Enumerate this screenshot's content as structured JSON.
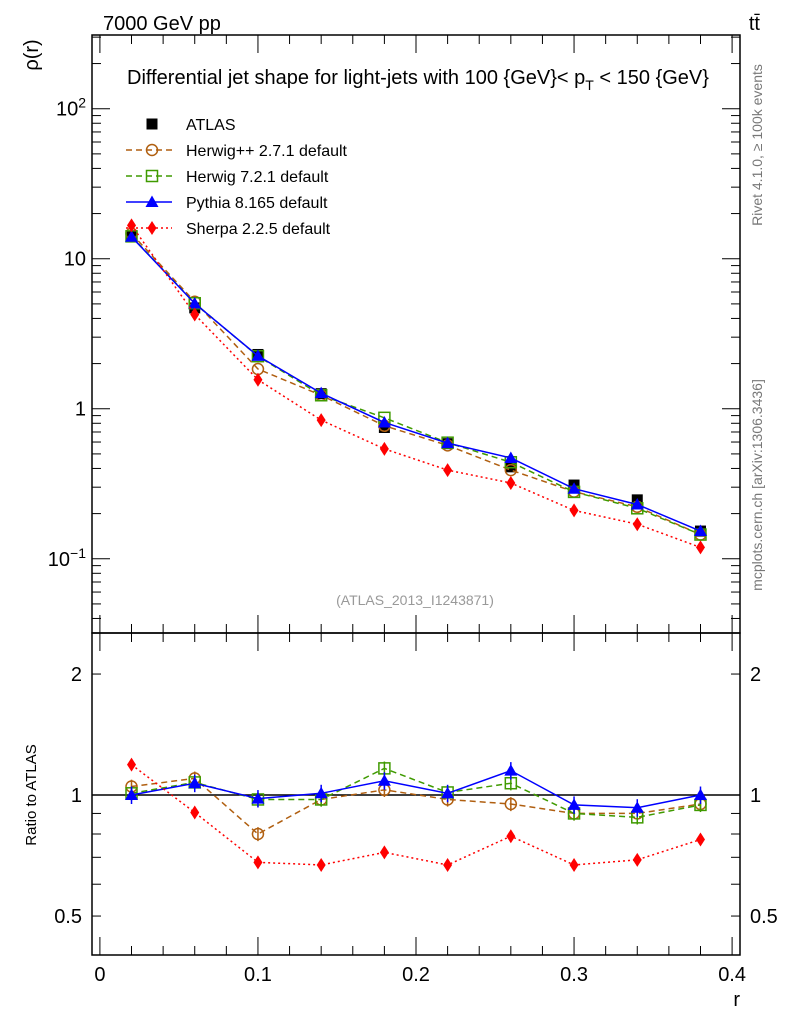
{
  "header": {
    "energy_label": "7000 GeV pp",
    "process_label": "tt̄"
  },
  "side": {
    "rivet_label": "Rivet 4.1.0, ≥ 100k events",
    "mcplots_label": "mcplots.cern.ch [arXiv:1306.3436]"
  },
  "watermark": "(ATLAS_2013_I1243871)",
  "chart_data": [
    {
      "type": "line",
      "title": "Differential jet shape for light-jets with 100 {GeV}< p",
      "title_sub": "T",
      "title_end": " < 150 {GeV}",
      "ylabel": "ρ(r)",
      "yscale": "log",
      "ylim": [
        0.032,
        310
      ],
      "xlim": [
        -0.005,
        0.405
      ],
      "ytick_labels": [
        {
          "v": 0.1,
          "t": "10",
          "sup": "−1"
        },
        {
          "v": 1,
          "t": "1",
          "sup": ""
        },
        {
          "v": 10,
          "t": "10",
          "sup": ""
        },
        {
          "v": 100,
          "t": "10",
          "sup": "2"
        }
      ],
      "legend_position": "top-left",
      "x": [
        0.02,
        0.06,
        0.1,
        0.14,
        0.18,
        0.22,
        0.26,
        0.3,
        0.34,
        0.38
      ],
      "series": [
        {
          "name": "ATLAS",
          "color": "#000000",
          "marker": "square-filled",
          "line": "none",
          "values": [
            14,
            4.7,
            2.3,
            1.26,
            0.75,
            0.585,
            0.41,
            0.31,
            0.247,
            0.153
          ]
        },
        {
          "name": "Herwig++ 2.7.1 default",
          "color": "#b05f10",
          "marker": "circle-open",
          "line": "dashed",
          "values": [
            14.7,
            5.17,
            1.84,
            1.23,
            0.77,
            0.57,
            0.39,
            0.28,
            0.222,
            0.145
          ]
        },
        {
          "name": "Herwig 7.2.1 default",
          "color": "#3f9a00",
          "marker": "square-open",
          "line": "dashed",
          "values": [
            14.1,
            5.05,
            2.24,
            1.23,
            0.87,
            0.594,
            0.44,
            0.279,
            0.217,
            0.145
          ]
        },
        {
          "name": "Pythia 8.165 default",
          "color": "#0000ff",
          "marker": "triangle-filled",
          "line": "solid",
          "values": [
            14,
            5.03,
            2.25,
            1.27,
            0.81,
            0.59,
            0.47,
            0.293,
            0.23,
            0.153
          ]
        },
        {
          "name": "Sherpa 2.2.5 default",
          "color": "#ff0000",
          "marker": "diamond-filled",
          "line": "dotted",
          "values": [
            16.7,
            4.25,
            1.56,
            0.84,
            0.54,
            0.39,
            0.32,
            0.21,
            0.17,
            0.119
          ]
        }
      ]
    },
    {
      "type": "line",
      "ylabel": "Ratio to ATLAS",
      "xlabel": "r",
      "yscale": "log",
      "ylim": [
        0.4,
        2.53
      ],
      "xlim": [
        -0.005,
        0.405
      ],
      "ytick_labels": [
        {
          "v": 0.5,
          "t": "0.5"
        },
        {
          "v": 1,
          "t": "1"
        },
        {
          "v": 2,
          "t": "2"
        }
      ],
      "xtick_labels": [
        {
          "v": 0,
          "t": "0"
        },
        {
          "v": 0.1,
          "t": "0.1"
        },
        {
          "v": 0.2,
          "t": "0.2"
        },
        {
          "v": 0.3,
          "t": "0.3"
        },
        {
          "v": 0.4,
          "t": "0.4"
        }
      ],
      "x": [
        0.02,
        0.06,
        0.1,
        0.14,
        0.18,
        0.22,
        0.26,
        0.3,
        0.34,
        0.38
      ],
      "series": [
        {
          "name": "Herwig++ 2.7.1 default",
          "values": [
            1.05,
            1.1,
            0.8,
            0.975,
            1.03,
            0.975,
            0.95,
            0.9,
            0.9,
            0.95
          ],
          "err": 0.04
        },
        {
          "name": "Herwig 7.2.1 default",
          "values": [
            1.01,
            1.075,
            0.975,
            0.975,
            1.165,
            1.015,
            1.07,
            0.9,
            0.88,
            0.945
          ],
          "err": 0.04
        },
        {
          "name": "Pythia 8.165 default",
          "values": [
            1.0,
            1.07,
            0.98,
            1.01,
            1.085,
            1.01,
            1.15,
            0.945,
            0.93,
            1.0
          ],
          "err": 0.05
        },
        {
          "name": "Sherpa 2.2.5 default",
          "values": [
            1.19,
            0.905,
            0.68,
            0.67,
            0.72,
            0.67,
            0.79,
            0.67,
            0.69,
            0.775
          ],
          "err": 0.03
        }
      ]
    }
  ]
}
